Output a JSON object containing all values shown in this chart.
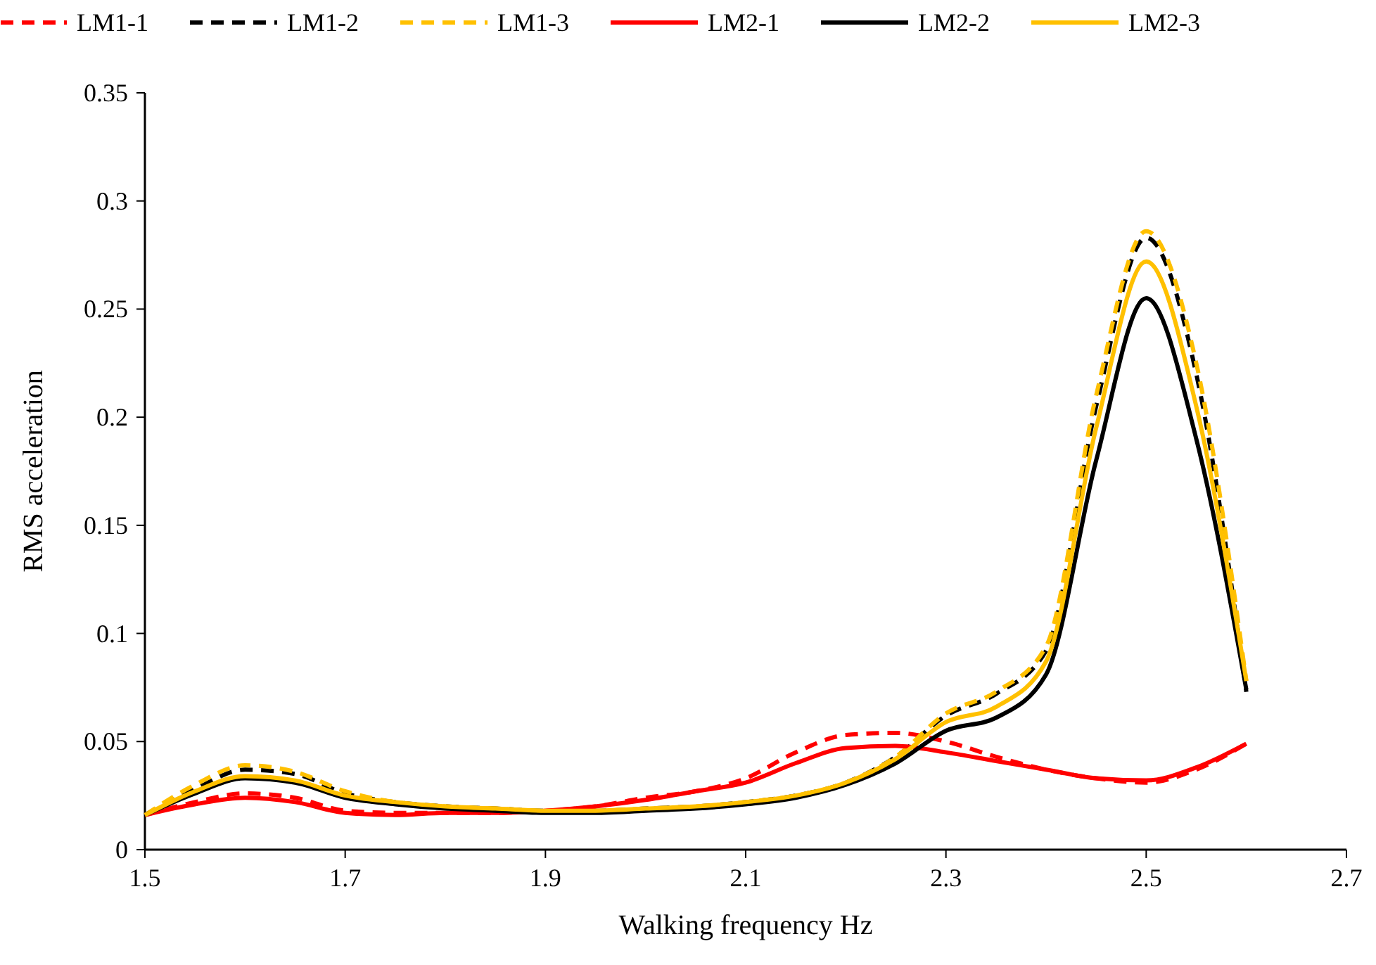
{
  "chart_data": {
    "type": "line",
    "xlabel": "Walking frequency Hz",
    "ylabel": "RMS acceleration",
    "x": [
      1.5,
      1.55,
      1.6,
      1.65,
      1.7,
      1.75,
      1.8,
      1.85,
      1.9,
      1.95,
      2.0,
      2.05,
      2.1,
      2.15,
      2.2,
      2.25,
      2.3,
      2.35,
      2.4,
      2.45,
      2.5,
      2.55,
      2.6
    ],
    "xlim": [
      1.5,
      2.7
    ],
    "xticks": [
      1.5,
      1.7,
      1.9,
      2.1,
      2.3,
      2.5,
      2.7
    ],
    "ylim": [
      0,
      0.35
    ],
    "yticks": [
      {
        "value": 0,
        "label": "0"
      },
      0.05,
      {
        "value": 0.1,
        "label": "0.1"
      },
      0.15,
      {
        "value": 0.2,
        "label": "0.2"
      },
      0.25,
      {
        "value": 0.3,
        "label": "0.3"
      },
      0.35
    ],
    "grid": false,
    "legend": "top",
    "series": [
      {
        "name": "LM1-1",
        "color": "#ff0000",
        "line_style": "dashed",
        "values": [
          0.016,
          0.022,
          0.026,
          0.024,
          0.018,
          0.017,
          0.017,
          0.017,
          0.018,
          0.02,
          0.024,
          0.027,
          0.033,
          0.045,
          0.053,
          0.054,
          0.05,
          0.043,
          0.037,
          0.033,
          0.031,
          0.037,
          0.049
        ]
      },
      {
        "name": "LM1-2",
        "color": "#000000",
        "line_style": "dashed",
        "values": [
          0.016,
          0.028,
          0.037,
          0.035,
          0.026,
          0.022,
          0.02,
          0.019,
          0.018,
          0.018,
          0.019,
          0.02,
          0.022,
          0.025,
          0.031,
          0.043,
          0.062,
          0.072,
          0.092,
          0.205,
          0.283,
          0.22,
          0.073
        ]
      },
      {
        "name": "LM1-3",
        "color": "#ffc000",
        "line_style": "dashed",
        "values": [
          0.016,
          0.03,
          0.039,
          0.036,
          0.027,
          0.022,
          0.02,
          0.019,
          0.018,
          0.018,
          0.019,
          0.02,
          0.022,
          0.025,
          0.031,
          0.043,
          0.063,
          0.073,
          0.094,
          0.21,
          0.286,
          0.225,
          0.078
        ]
      },
      {
        "name": "LM2-1",
        "color": "#ff0000",
        "line_style": "solid",
        "values": [
          0.016,
          0.021,
          0.024,
          0.022,
          0.017,
          0.016,
          0.017,
          0.017,
          0.018,
          0.02,
          0.023,
          0.027,
          0.031,
          0.04,
          0.047,
          0.048,
          0.045,
          0.041,
          0.037,
          0.033,
          0.032,
          0.038,
          0.049
        ]
      },
      {
        "name": "LM2-2",
        "color": "#000000",
        "line_style": "solid",
        "values": [
          0.016,
          0.026,
          0.033,
          0.031,
          0.024,
          0.021,
          0.019,
          0.018,
          0.017,
          0.017,
          0.018,
          0.019,
          0.021,
          0.024,
          0.03,
          0.04,
          0.055,
          0.061,
          0.081,
          0.18,
          0.255,
          0.19,
          0.074
        ]
      },
      {
        "name": "LM2-3",
        "color": "#ffc000",
        "line_style": "solid",
        "values": [
          0.016,
          0.027,
          0.034,
          0.032,
          0.025,
          0.022,
          0.02,
          0.019,
          0.018,
          0.018,
          0.019,
          0.02,
          0.022,
          0.025,
          0.031,
          0.042,
          0.059,
          0.066,
          0.087,
          0.195,
          0.272,
          0.205,
          0.078
        ]
      }
    ]
  }
}
